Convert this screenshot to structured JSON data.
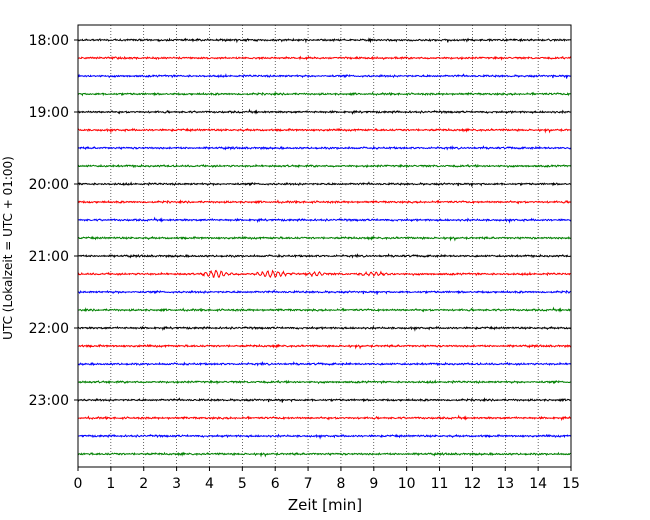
{
  "chart_data": {
    "type": "line",
    "title": "",
    "xlabel": "Zeit  [min]",
    "ylabel": "UTC (Lokalzeit = UTC + 01:00)",
    "xlim": [
      0,
      15
    ],
    "x_ticks": [
      0,
      1,
      2,
      3,
      4,
      5,
      6,
      7,
      8,
      9,
      10,
      11,
      12,
      13,
      14,
      15
    ],
    "y_tick_labels": [
      "18:00",
      "19:00",
      "20:00",
      "21:00",
      "22:00",
      "23:00"
    ],
    "grid": "vertical dotted",
    "legend": "none",
    "trace_interval_minutes": 15,
    "trace_start": "18:00",
    "trace_colors": [
      "#000000",
      "#ff0000",
      "#0000ff",
      "#008000"
    ],
    "series": [
      {
        "start": "18:00",
        "color": "#000000"
      },
      {
        "start": "18:15",
        "color": "#ff0000"
      },
      {
        "start": "18:30",
        "color": "#0000ff"
      },
      {
        "start": "18:45",
        "color": "#008000"
      },
      {
        "start": "19:00",
        "color": "#000000"
      },
      {
        "start": "19:15",
        "color": "#ff0000"
      },
      {
        "start": "19:30",
        "color": "#0000ff"
      },
      {
        "start": "19:45",
        "color": "#008000"
      },
      {
        "start": "20:00",
        "color": "#000000"
      },
      {
        "start": "20:15",
        "color": "#ff0000"
      },
      {
        "start": "20:30",
        "color": "#0000ff"
      },
      {
        "start": "20:45",
        "color": "#008000"
      },
      {
        "start": "21:00",
        "color": "#000000"
      },
      {
        "start": "21:15",
        "color": "#ff0000"
      },
      {
        "start": "21:30",
        "color": "#0000ff"
      },
      {
        "start": "21:45",
        "color": "#008000"
      },
      {
        "start": "22:00",
        "color": "#000000"
      },
      {
        "start": "22:15",
        "color": "#ff0000"
      },
      {
        "start": "22:30",
        "color": "#0000ff"
      },
      {
        "start": "22:45",
        "color": "#008000"
      },
      {
        "start": "23:00",
        "color": "#000000"
      },
      {
        "start": "23:15",
        "color": "#ff0000"
      },
      {
        "start": "23:30",
        "color": "#0000ff"
      },
      {
        "start": "23:45",
        "color": "#008000"
      }
    ]
  }
}
